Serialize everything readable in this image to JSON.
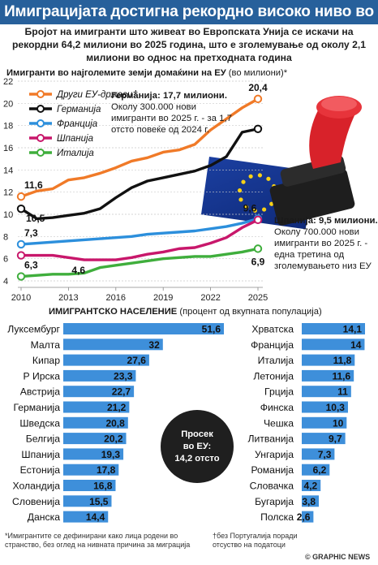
{
  "headline": "Имиграцијата достигна рекордно високо ниво во ЕУ",
  "subtitle": "Бројот на имигранти што живеат во Европската Унија се искачи на рекордни 64,2 милиони во 2025 година, што е зголемување од околу 2,1 милиони во однос на претходната година",
  "line_title_bold": "Имигранти во најголемите земји домаќини на ЕУ",
  "line_title_unit": "(во милиони)*",
  "annotations": {
    "germany_bold": "Германија: 17,7 милиони.",
    "germany_text": "Околу 300.000 нови имигранти во 2025 г. - за 1,7 отсто повеќе од 2024 г.",
    "spain_bold": "Шпанија: 9,5 милиони.",
    "spain_text": "Околу 700.000 нови имигранти во 2025 г. - една третина од зголемувањето низ ЕУ"
  },
  "bar_title_bold": "ИМИГРАНТСКО НАСЕЛЕНИЕ",
  "bar_title_unit": "(процент од вкупната популација)",
  "average": {
    "line1": "Просек",
    "line2": "во ЕУ:",
    "line3": "14,2 отсто"
  },
  "footnote1": "*Имигрантите се дефинирани како лица родени во странство, без оглед на нивната причина за миграција",
  "footnote2_mark": "†",
  "footnote2": "без Португалија поради отсуство на податоци",
  "credit": "© GRAPHIC NEWS",
  "colors": {
    "header": "#27609b",
    "orange": "#f07a28",
    "black": "#111111",
    "blue": "#2c8fdc",
    "pink": "#c8176b",
    "green": "#3fae3c",
    "bar": "#3e8fda",
    "avg_circle": "#1f1f1f"
  },
  "chart_data": [
    {
      "type": "line",
      "x": [
        2010,
        2011,
        2012,
        2013,
        2014,
        2015,
        2016,
        2017,
        2018,
        2019,
        2020,
        2021,
        2022,
        2023,
        2024,
        2025
      ],
      "x_ticks": [
        2010,
        2013,
        2016,
        2019,
        2022,
        2025
      ],
      "y_ticks": [
        4,
        6,
        8,
        10,
        12,
        14,
        16,
        18,
        20,
        22
      ],
      "ylim": [
        4,
        22
      ],
      "series": [
        {
          "name": "Други ЕУ-држави†",
          "color": "#f07a28",
          "values": [
            11.6,
            12.1,
            12.3,
            13.1,
            13.3,
            13.7,
            14.2,
            14.8,
            15.1,
            15.6,
            15.8,
            16.3,
            17.6,
            18.6,
            19.6,
            20.4
          ],
          "labels": {
            "0": "11,6",
            "15": "20,4"
          }
        },
        {
          "name": "Германија",
          "color": "#111111",
          "values": [
            10.5,
            9.6,
            9.7,
            9.9,
            10.1,
            10.5,
            11.5,
            12.4,
            13.0,
            13.3,
            13.6,
            13.9,
            14.4,
            15.2,
            17.4,
            17.7
          ],
          "labels": {
            "0": "10,5"
          }
        },
        {
          "name": "Франција",
          "color": "#2c8fdc",
          "values": [
            7.3,
            7.4,
            7.5,
            7.6,
            7.7,
            7.8,
            7.9,
            8.0,
            8.2,
            8.3,
            8.4,
            8.5,
            8.7,
            8.9,
            9.2,
            9.6
          ],
          "labels": {
            "0": "7,3",
            "15": "9,6"
          }
        },
        {
          "name": "Шпанија",
          "color": "#c8176b",
          "values": [
            6.3,
            6.3,
            6.3,
            6.1,
            5.9,
            5.9,
            5.9,
            6.1,
            6.4,
            6.6,
            6.9,
            7.0,
            7.4,
            7.9,
            8.8,
            9.5
          ],
          "labels": {
            "0": "6,3"
          }
        },
        {
          "name": "Италија",
          "color": "#3fae3c",
          "values": [
            4.4,
            4.5,
            4.6,
            4.6,
            4.7,
            5.2,
            5.4,
            5.6,
            5.8,
            6.0,
            6.1,
            6.2,
            6.2,
            6.4,
            6.6,
            6.9
          ],
          "labels": {
            "3": "4,6",
            "15": "6,9"
          }
        }
      ]
    },
    {
      "type": "bar",
      "title": "ИМИГРАНТСКО НАСЕЛЕНИЕ",
      "columns": [
        {
          "categories": [
            "Луксембург",
            "Малта",
            "Кипар",
            "Р Ирска",
            "Австрија",
            "Германија",
            "Шведска",
            "Белгија",
            "Шпанија",
            "Естонија",
            "Холандија",
            "Словенија",
            "Данска"
          ],
          "values": [
            51.6,
            32,
            27.6,
            23.3,
            22.7,
            21.2,
            20.8,
            20.2,
            19.3,
            17.8,
            16.8,
            15.5,
            14.4
          ],
          "labels": [
            "51,6",
            "32",
            "27,6",
            "23,3",
            "22,7",
            "21,2",
            "20,8",
            "20,2",
            "19,3",
            "17,8",
            "16,8",
            "15,5",
            "14,4"
          ]
        },
        {
          "categories": [
            "Хрватска",
            "Франција",
            "Италија",
            "Летонија",
            "Грција",
            "Финска",
            "Чешка",
            "Литванија",
            "Унгарија",
            "Романија",
            "Словачка",
            "Бугарија",
            "Полска"
          ],
          "values": [
            14.1,
            14,
            11.8,
            11.6,
            11,
            10.3,
            10,
            9.7,
            7.3,
            6.2,
            4.2,
            3.8,
            2.6
          ],
          "labels": [
            "14,1",
            "14",
            "11,8",
            "11,6",
            "11",
            "10,3",
            "10",
            "9,7",
            "7,3",
            "6,2",
            "4,2",
            "3,8",
            "2,6"
          ]
        }
      ]
    }
  ]
}
